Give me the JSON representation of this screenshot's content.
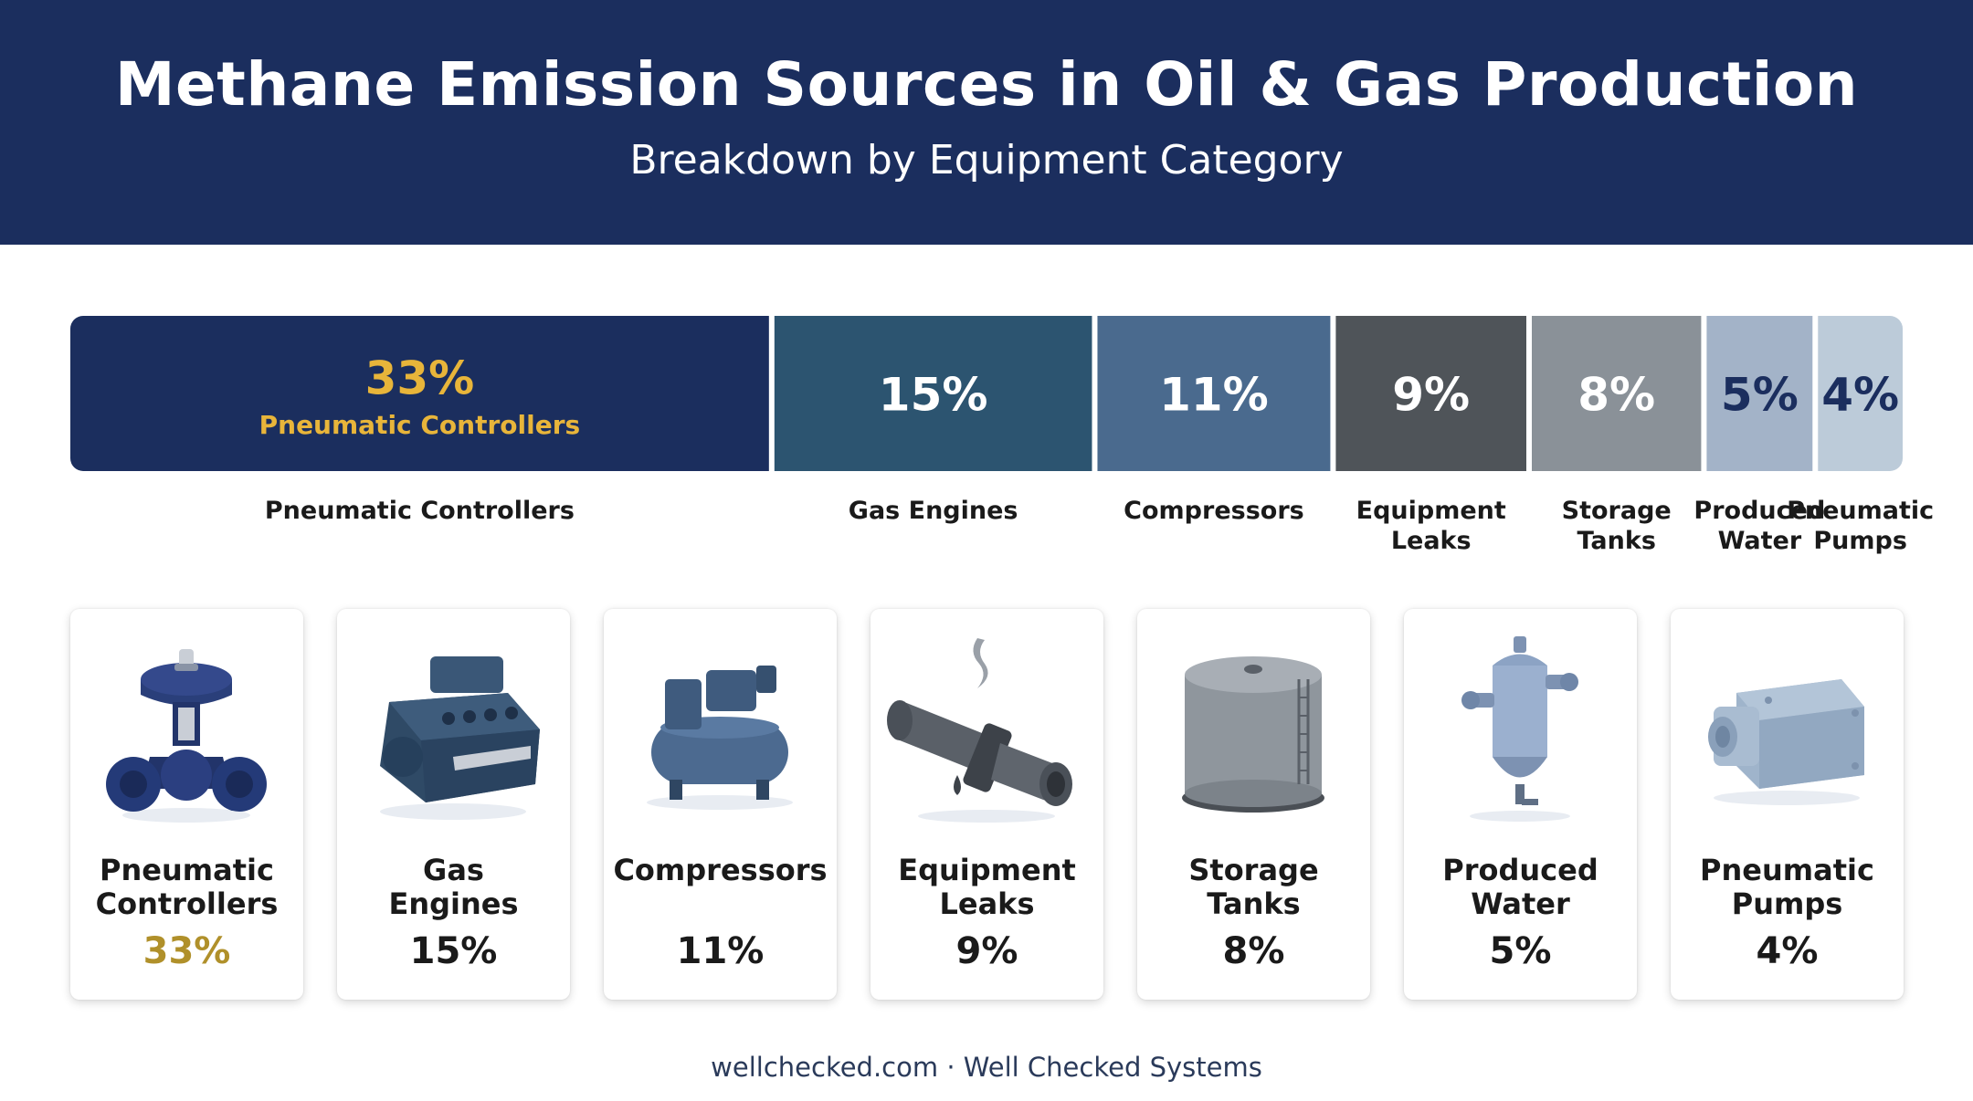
{
  "header": {
    "title": "Methane Emission Sources in Oil & Gas Production",
    "subtitle": "Breakdown by Equipment Category"
  },
  "chart_data": {
    "type": "bar",
    "orientation": "horizontal-stacked-100",
    "categories": [
      "Pneumatic Controllers",
      "Gas Engines",
      "Compressors",
      "Equipment Leaks",
      "Storage Tanks",
      "Produced Water",
      "Pneumatic Pumps"
    ],
    "values": [
      33,
      15,
      11,
      9,
      8,
      5,
      4
    ],
    "value_labels": [
      "33%",
      "15%",
      "11%",
      "9%",
      "8%",
      "5%",
      "4%"
    ],
    "category_labels": [
      [
        "Pneumatic Controllers"
      ],
      [
        "Gas Engines"
      ],
      [
        "Compressors"
      ],
      [
        "Equipment",
        "Leaks"
      ],
      [
        "Storage",
        "Tanks"
      ],
      [
        "Produced",
        "Water"
      ],
      [
        "Pneumatic",
        "Pumps"
      ]
    ],
    "inner_label": "Pneumatic Controllers",
    "colors": [
      "#1b2e5e",
      "#2c5470",
      "#4a6a8e",
      "#4f5459",
      "#8a9198",
      "#a3b3c8",
      "#bccbd9"
    ],
    "value_label_colors": [
      "#e8b53a",
      "#ffffff",
      "#ffffff",
      "#ffffff",
      "#ffffff",
      "#1b2e5e",
      "#1b2e5e"
    ],
    "highlight_color": "#e8b53a"
  },
  "cards": [
    {
      "name": "Pneumatic Controllers",
      "lines": [
        "Pneumatic",
        "Controllers"
      ],
      "value": "33%",
      "icon": "control-valve-icon",
      "highlight": true
    },
    {
      "name": "Gas Engines",
      "lines": [
        "Gas",
        "Engines"
      ],
      "value": "15%",
      "icon": "engine-icon",
      "highlight": false
    },
    {
      "name": "Compressors",
      "lines": [
        "Compressors"
      ],
      "value": "11%",
      "icon": "air-compressor-icon",
      "highlight": false
    },
    {
      "name": "Equipment Leaks",
      "lines": [
        "Equipment",
        "Leaks"
      ],
      "value": "9%",
      "icon": "leaking-pipe-icon",
      "highlight": false
    },
    {
      "name": "Storage Tanks",
      "lines": [
        "Storage",
        "Tanks"
      ],
      "value": "8%",
      "icon": "storage-tank-icon",
      "highlight": false
    },
    {
      "name": "Produced Water",
      "lines": [
        "Produced",
        "Water"
      ],
      "value": "5%",
      "icon": "separator-vessel-icon",
      "highlight": false
    },
    {
      "name": "Pneumatic Pumps",
      "lines": [
        "Pneumatic",
        "Pumps"
      ],
      "value": "4%",
      "icon": "pump-icon",
      "highlight": false
    }
  ],
  "footer": {
    "text": "wellchecked.com · Well Checked Systems"
  }
}
